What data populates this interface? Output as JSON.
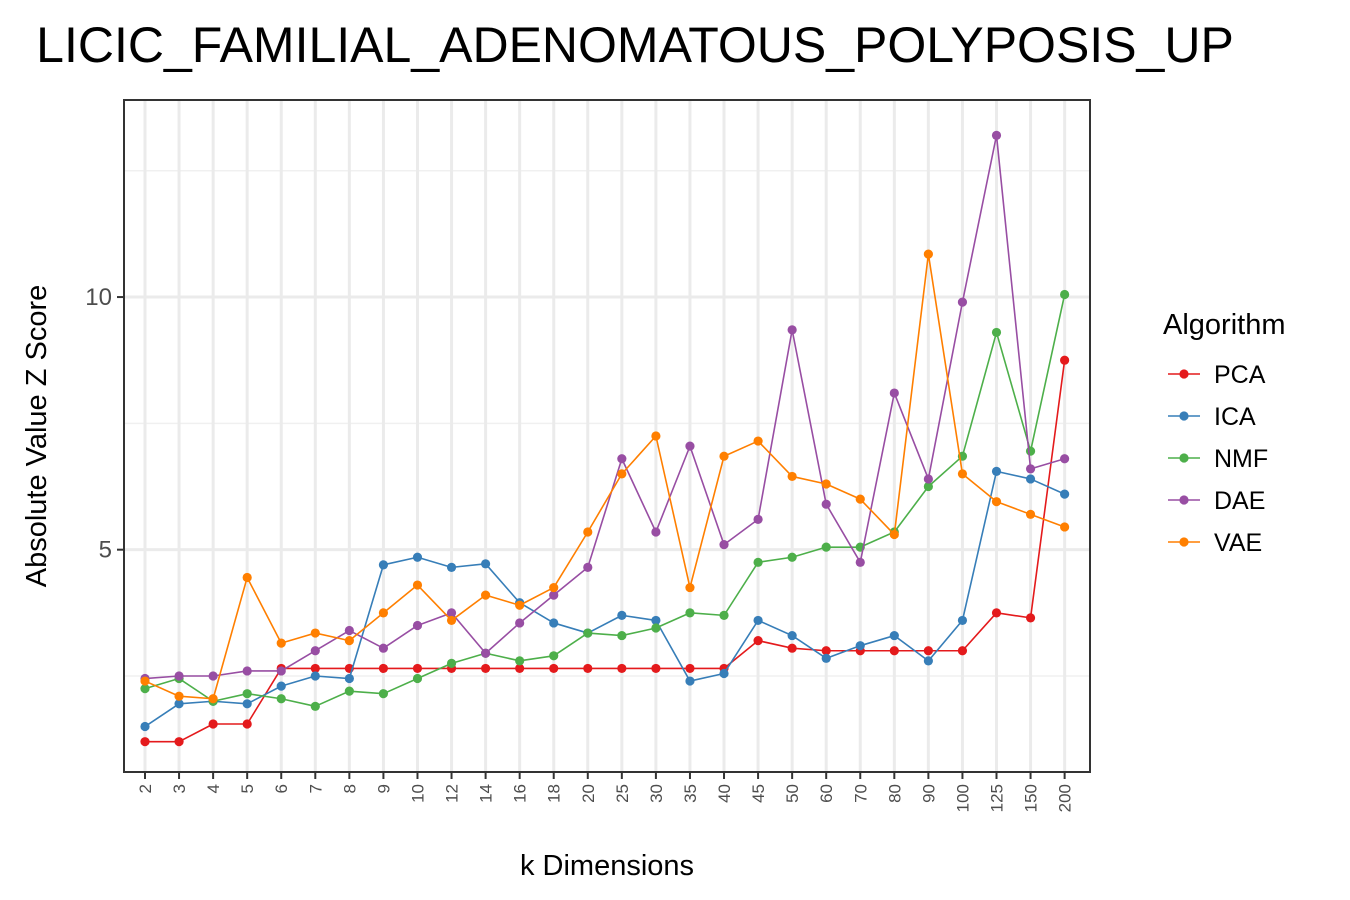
{
  "chart_data": {
    "type": "line",
    "title": "LICIC_FAMILIAL_ADENOMATOUS_POLYPOSIS_UP",
    "xlabel": "k Dimensions",
    "ylabel": "Absolute Value Z Score",
    "categories": [
      "2",
      "3",
      "4",
      "5",
      "6",
      "7",
      "8",
      "9",
      "10",
      "12",
      "14",
      "16",
      "18",
      "20",
      "25",
      "30",
      "35",
      "40",
      "45",
      "50",
      "60",
      "70",
      "80",
      "90",
      "100",
      "125",
      "150",
      "200"
    ],
    "ylim": [
      0.6,
      13.9
    ],
    "yticks": [
      5,
      10
    ],
    "ytick_labels": [
      "5",
      "10"
    ],
    "grid": true,
    "legend": {
      "title": "Algorithm",
      "position": "right"
    },
    "series": [
      {
        "name": "PCA",
        "color": "#e41a1c",
        "values": [
          1.2,
          1.2,
          1.55,
          1.55,
          2.65,
          2.65,
          2.65,
          2.65,
          2.65,
          2.65,
          2.65,
          2.65,
          2.65,
          2.65,
          2.65,
          2.65,
          2.65,
          2.65,
          3.2,
          3.05,
          3.0,
          3.0,
          3.0,
          3.0,
          3.0,
          3.75,
          3.65,
          8.75
        ]
      },
      {
        "name": "ICA",
        "color": "#377eb8",
        "values": [
          1.5,
          1.95,
          2.0,
          1.95,
          2.3,
          2.5,
          2.45,
          4.7,
          4.85,
          4.65,
          4.72,
          3.95,
          3.55,
          3.35,
          3.7,
          3.6,
          2.4,
          2.55,
          3.6,
          3.3,
          2.85,
          3.1,
          3.3,
          2.8,
          3.6,
          6.55,
          6.4,
          6.1
        ]
      },
      {
        "name": "NMF",
        "color": "#4daf4a",
        "values": [
          2.25,
          2.45,
          2.0,
          2.15,
          2.05,
          1.9,
          2.2,
          2.15,
          2.45,
          2.75,
          2.95,
          2.8,
          2.9,
          3.35,
          3.3,
          3.45,
          3.75,
          3.7,
          4.75,
          4.85,
          5.05,
          5.05,
          5.35,
          6.25,
          6.85,
          9.3,
          6.95,
          10.05
        ]
      },
      {
        "name": "DAE",
        "color": "#984ea3",
        "values": [
          2.45,
          2.5,
          2.5,
          2.6,
          2.6,
          3.0,
          3.4,
          3.05,
          3.5,
          3.75,
          2.95,
          3.55,
          4.1,
          4.65,
          6.8,
          5.35,
          7.05,
          5.1,
          5.6,
          9.35,
          5.9,
          4.75,
          8.1,
          6.4,
          9.9,
          13.2,
          6.6,
          6.8
        ]
      },
      {
        "name": "VAE",
        "color": "#ff7f00",
        "values": [
          2.4,
          2.1,
          2.05,
          4.45,
          3.15,
          3.35,
          3.2,
          3.75,
          4.3,
          3.6,
          4.1,
          3.9,
          4.25,
          5.35,
          6.5,
          7.25,
          4.25,
          6.85,
          7.15,
          6.45,
          6.3,
          6.0,
          5.3,
          10.85,
          6.5,
          5.95,
          5.7,
          5.45
        ]
      }
    ]
  }
}
